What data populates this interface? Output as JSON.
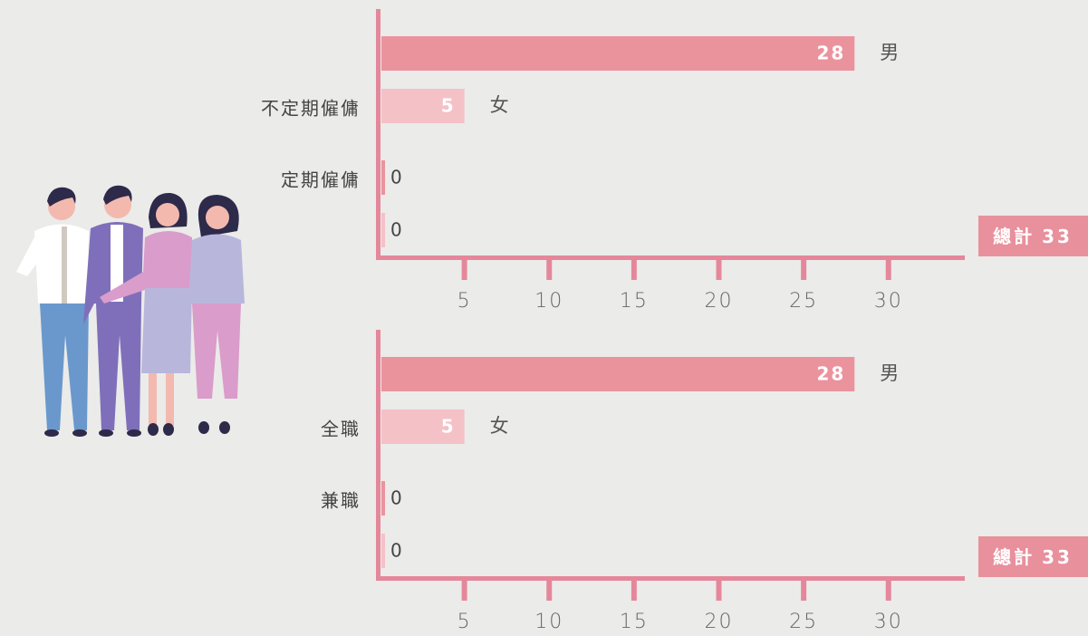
{
  "chart_data": [
    {
      "type": "bar",
      "orientation": "horizontal",
      "categories": [
        "不定期僱傭",
        "定期僱傭"
      ],
      "series": [
        {
          "name": "男",
          "color": "#eb939d",
          "values": [
            28,
            0
          ]
        },
        {
          "name": "女",
          "color": "#f4c1c6",
          "values": [
            5,
            0
          ]
        }
      ],
      "xlim": [
        0,
        34.5
      ],
      "xticks": [
        5,
        10,
        15,
        20,
        25,
        30
      ],
      "total_label": "總計",
      "total": 33
    },
    {
      "type": "bar",
      "orientation": "horizontal",
      "categories": [
        "全職",
        "兼職"
      ],
      "series": [
        {
          "name": "男",
          "color": "#eb939d",
          "values": [
            28,
            0
          ]
        },
        {
          "name": "女",
          "color": "#f4c1c6",
          "values": [
            5,
            0
          ]
        }
      ],
      "xlim": [
        0,
        34.5
      ],
      "xticks": [
        5,
        10,
        15,
        20,
        25,
        30
      ],
      "total_label": "總計",
      "total": 33
    }
  ]
}
